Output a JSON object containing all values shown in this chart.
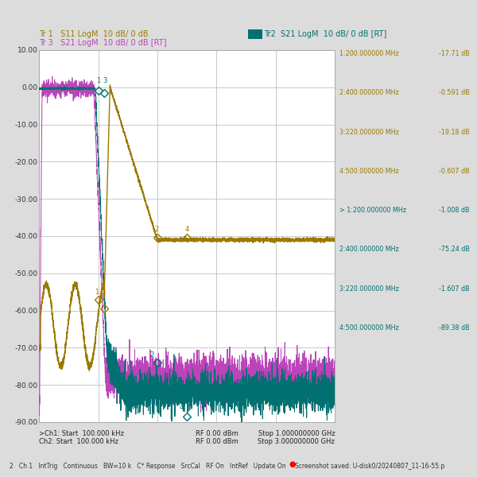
{
  "title_tr1": "Tr 1   S11 LogM  10 dB/ 0 dB",
  "title_tr2": "Tr2  S21 LogM  10 dB/ 0 dB [RT]",
  "title_tr3": "Tr 3   S21 LogM  10 dB/ 0 dB [RT]",
  "bg_color": "#dcdcdc",
  "plot_bg_color": "#ffffff",
  "grid_color": "#c0c0c0",
  "ylim": [
    -90,
    10
  ],
  "ytick_vals": [
    10,
    0,
    -10,
    -20,
    -30,
    -40,
    -50,
    -60,
    -70,
    -80,
    -90
  ],
  "color_tr1": "#9b7a00",
  "color_tr2": "#007070",
  "color_tr3": "#bb44bb",
  "marker_table": [
    {
      "label": "1:200.000000 MHz",
      "val": "-17.71 dB",
      "group": 1
    },
    {
      "label": "2:400.000000 MHz",
      "val": "-0.591 dB",
      "group": 1
    },
    {
      "label": "3:220.000000 MHz",
      "val": "-19.18 dB",
      "group": 1
    },
    {
      "label": "4:500.000000 MHz",
      "val": "-0.607 dB",
      "group": 1
    },
    {
      "label": "> 1:200.000000 MHz",
      "val": "-1.008 dB",
      "group": 2
    },
    {
      "label": "2:400.000000 MHz",
      "val": "-75.24 dB",
      "group": 2
    },
    {
      "label": "3:220.000000 MHz",
      "val": "-1.607 dB",
      "group": 2
    },
    {
      "label": "4:500.000000 MHz",
      "val": "-89.38 dB",
      "group": 2
    }
  ],
  "bottom_left_1": ">Ch1: Start  100.000 kHz",
  "bottom_left_2": "Ch2: Start  100.000 kHz",
  "bottom_mid_1": "RF 0.00 dBm",
  "bottom_mid_2": "RF 0.00 dBm",
  "bottom_right_1": "Stop 1.000000000 GHz",
  "bottom_right_2": "Stop 3.000000000 GHz",
  "status_bar": "2   Ch 1   IntTrig   Continuous   BW=10 k   C* Response   SrcCal   RF On   IntRef   Update On",
  "screenshot_text": "Screenshot saved: U-disk0/20240807_11-16-55.p"
}
